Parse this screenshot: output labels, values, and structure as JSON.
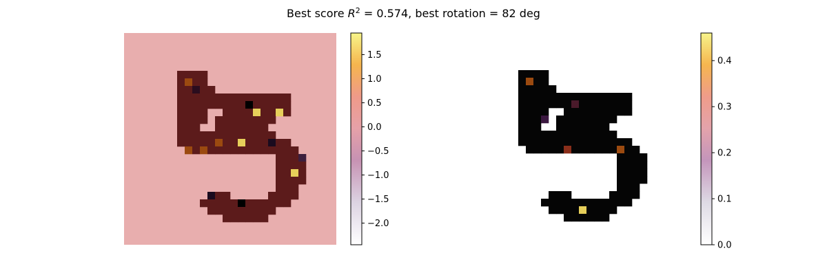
{
  "figure": {
    "title": "Best score R² = 0.574, best rotation = 82 deg",
    "title_parts": {
      "prefix": "Best score ",
      "r": "R",
      "sup": "2",
      "suffix": " = 0.574, best rotation = 82 deg"
    }
  },
  "chart_data": [
    {
      "type": "heatmap",
      "name": "left-panel",
      "description_of_content": "Handwritten digit 5 image with an attribution overlay; magma colormap",
      "grid_size": [
        28,
        28
      ],
      "colormap": "magma-like (black to yellow) on pink background",
      "colorbar": {
        "min": -2.45,
        "max": 1.95,
        "ticks": [
          1.5,
          1.0,
          0.5,
          0.0,
          -0.5,
          -1.0,
          -1.5,
          -2.0
        ],
        "tick_labels": [
          "1.5",
          "1.0",
          "0.5",
          "0.0",
          "−0.5",
          "−1.0",
          "−1.5",
          "−2.0"
        ]
      },
      "axes_visible": false,
      "grid": false
    },
    {
      "type": "heatmap",
      "name": "right-panel",
      "grid_size": [
        28,
        28
      ],
      "colormap": "grey-to-magma on white background",
      "colorbar": {
        "min": 0.0,
        "max": 0.46,
        "ticks": [
          0.4,
          0.3,
          0.2,
          0.1,
          0.0
        ],
        "tick_labels": [
          "0.4",
          "0.3",
          "0.2",
          "0.1",
          "0.0"
        ]
      },
      "axes_visible": false,
      "grid": false
    }
  ],
  "colors": {
    "left_background": "#e8aeae",
    "left_stroke": "#5c1b1b",
    "right_stroke": "#050505",
    "highlight_yellow": "#e6cf5a",
    "highlight_orange": "#9b4a10",
    "outline_light": "#d9c8d0"
  }
}
